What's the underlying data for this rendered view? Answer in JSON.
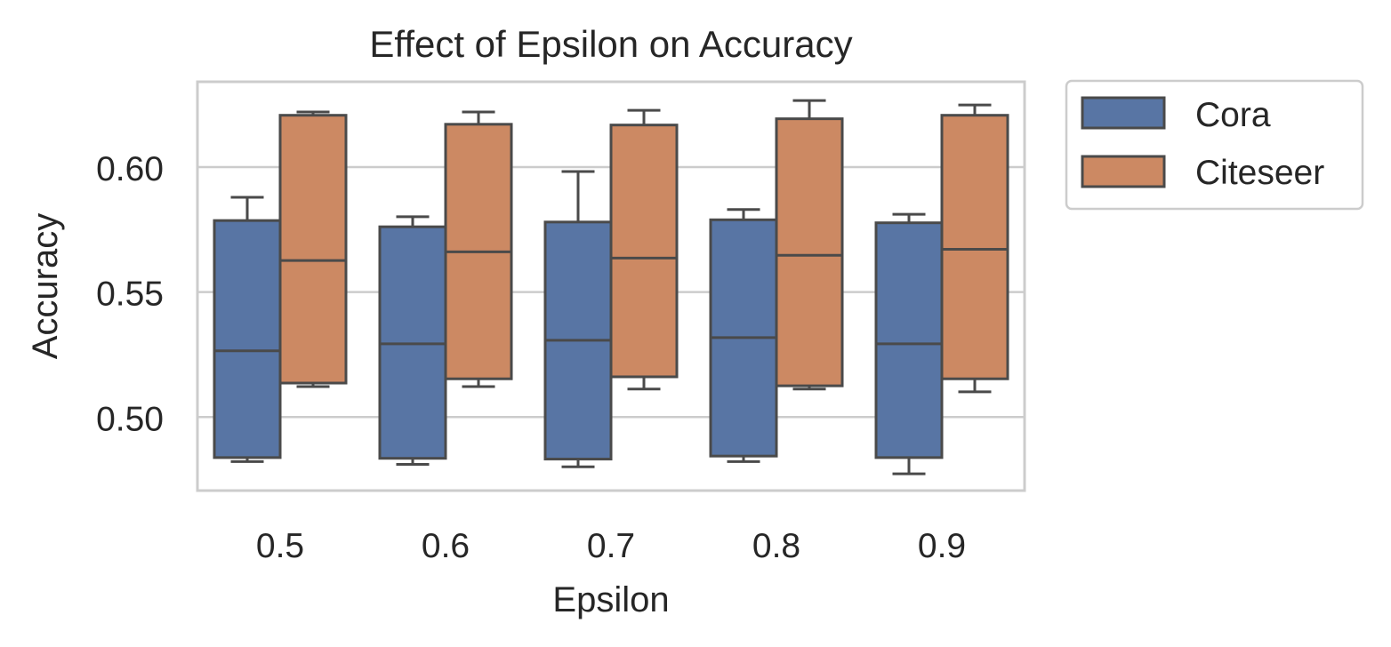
{
  "chart_data": {
    "type": "box",
    "title": "Effect of Epsilon on Accuracy",
    "xlabel": "Epsilon",
    "ylabel": "Accuracy",
    "categories": [
      "0.5",
      "0.6",
      "0.7",
      "0.8",
      "0.9"
    ],
    "ylim": [
      0.4706,
      0.6341
    ],
    "yticks": [
      0.5,
      0.55,
      0.6
    ],
    "ytick_labels": [
      "0.50",
      "0.55",
      "0.60"
    ],
    "grid": true,
    "legend_position": "outside-upper-right",
    "series": [
      {
        "name": "Cora",
        "color": "#5875a4",
        "boxes": [
          {
            "whislo": 0.4822,
            "q1": 0.4838,
            "med": 0.5265,
            "q3": 0.5786,
            "whishi": 0.5879
          },
          {
            "whislo": 0.4811,
            "q1": 0.4835,
            "med": 0.5293,
            "q3": 0.5761,
            "whishi": 0.5801
          },
          {
            "whislo": 0.4801,
            "q1": 0.4832,
            "med": 0.5307,
            "q3": 0.578,
            "whishi": 0.5982
          },
          {
            "whislo": 0.4822,
            "q1": 0.4844,
            "med": 0.5318,
            "q3": 0.5789,
            "whishi": 0.583
          },
          {
            "whislo": 0.4773,
            "q1": 0.4838,
            "med": 0.5293,
            "q3": 0.5777,
            "whishi": 0.5811
          }
        ]
      },
      {
        "name": "Citeseer",
        "color": "#cc8963",
        "boxes": [
          {
            "whislo": 0.5122,
            "q1": 0.5136,
            "med": 0.5626,
            "q3": 0.6207,
            "whishi": 0.622
          },
          {
            "whislo": 0.5122,
            "q1": 0.5153,
            "med": 0.5661,
            "q3": 0.6171,
            "whishi": 0.622
          },
          {
            "whislo": 0.5112,
            "q1": 0.5161,
            "med": 0.5636,
            "q3": 0.6168,
            "whishi": 0.6227
          },
          {
            "whislo": 0.5112,
            "q1": 0.5125,
            "med": 0.5647,
            "q3": 0.6193,
            "whishi": 0.6266
          },
          {
            "whislo": 0.5101,
            "q1": 0.5153,
            "med": 0.5671,
            "q3": 0.6207,
            "whishi": 0.6248
          }
        ]
      }
    ]
  }
}
